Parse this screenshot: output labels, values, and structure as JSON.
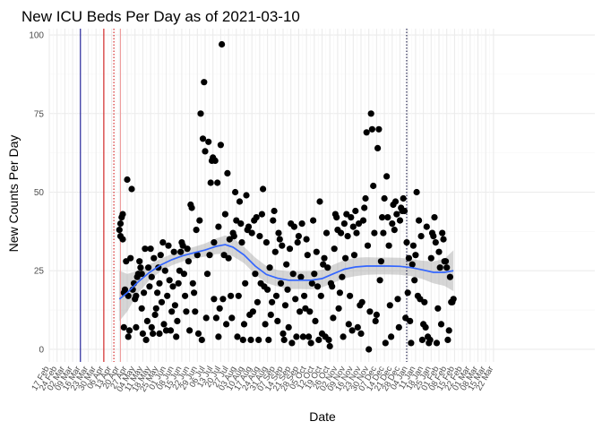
{
  "chart_data": {
    "type": "scatter",
    "title": "New ICU Beds Per Day as of 2021-03-10",
    "xlabel": "Date",
    "ylabel": "New Counts Per Day",
    "x_range": [
      0,
      490
    ],
    "ylim": [
      -4,
      102
    ],
    "y_ticks": [
      0,
      25,
      50,
      75,
      100
    ],
    "x_tick_labels": [
      "17 Feb",
      "24 Feb",
      "02 Mar",
      "09 Mar",
      "16 Mar",
      "23 Mar",
      "30 Mar",
      "06 Apr",
      "13 Apr",
      "20 Apr",
      "27 Apr",
      "04 May",
      "11 May",
      "18 May",
      "25 May",
      "01 Jun",
      "08 Jun",
      "15 Jun",
      "22 Jun",
      "29 Jun",
      "06 Jul",
      "13 Jul",
      "20 Jul",
      "27 Jul",
      "03 Aug",
      "10 Aug",
      "17 Aug",
      "24 Aug",
      "31 Aug",
      "07 Sep",
      "14 Sep",
      "21 Sep",
      "28 Sep",
      "05 Oct",
      "12 Oct",
      "19 Oct",
      "26 Oct",
      "02 Nov",
      "09 Nov",
      "16 Nov",
      "23 Nov",
      "30 Nov",
      "07 Dec",
      "14 Dec",
      "21 Dec",
      "28 Dec",
      "04 Jan",
      "11 Jan",
      "18 Jan",
      "25 Jan",
      "01 Feb",
      "08 Feb",
      "15 Feb",
      "22 Feb",
      "01 Mar",
      "08 Mar",
      "15 Mar",
      "22 Mar"
    ],
    "grid": true,
    "points": [
      [
        63,
        38
      ],
      [
        64,
        40
      ],
      [
        64,
        36
      ],
      [
        65,
        42
      ],
      [
        66,
        43
      ],
      [
        66,
        35
      ],
      [
        67,
        7
      ],
      [
        67,
        18
      ],
      [
        68,
        19
      ],
      [
        69,
        28
      ],
      [
        70,
        54
      ],
      [
        71,
        17
      ],
      [
        71,
        4
      ],
      [
        72,
        6
      ],
      [
        73,
        29
      ],
      [
        74,
        51
      ],
      [
        75,
        19
      ],
      [
        76,
        21
      ],
      [
        77,
        16
      ],
      [
        78,
        17
      ],
      [
        78,
        7
      ],
      [
        79,
        23
      ],
      [
        80,
        24
      ],
      [
        81,
        28
      ],
      [
        82,
        26
      ],
      [
        83,
        24
      ],
      [
        83,
        13
      ],
      [
        84,
        5
      ],
      [
        85,
        18
      ],
      [
        86,
        32
      ],
      [
        87,
        3
      ],
      [
        88,
        9
      ],
      [
        89,
        26
      ],
      [
        90,
        20
      ],
      [
        91,
        32
      ],
      [
        92,
        7
      ],
      [
        92,
        23
      ],
      [
        93,
        5
      ],
      [
        94,
        29
      ],
      [
        95,
        11
      ],
      [
        96,
        13
      ],
      [
        97,
        18
      ],
      [
        98,
        26
      ],
      [
        99,
        21
      ],
      [
        99,
        5
      ],
      [
        100,
        30
      ],
      [
        101,
        15
      ],
      [
        102,
        34
      ],
      [
        103,
        8
      ],
      [
        104,
        25
      ],
      [
        105,
        6
      ],
      [
        106,
        17
      ],
      [
        107,
        33
      ],
      [
        108,
        22
      ],
      [
        109,
        6
      ],
      [
        110,
        12
      ],
      [
        111,
        20
      ],
      [
        112,
        31
      ],
      [
        113,
        14
      ],
      [
        114,
        4
      ],
      [
        115,
        9
      ],
      [
        116,
        21
      ],
      [
        117,
        25
      ],
      [
        118,
        31
      ],
      [
        119,
        34
      ],
      [
        120,
        33
      ],
      [
        121,
        24
      ],
      [
        122,
        17
      ],
      [
        123,
        12
      ],
      [
        124,
        32
      ],
      [
        125,
        28
      ],
      [
        126,
        6
      ],
      [
        127,
        46
      ],
      [
        128,
        45
      ],
      [
        129,
        21
      ],
      [
        130,
        18
      ],
      [
        131,
        12
      ],
      [
        132,
        38
      ],
      [
        133,
        30
      ],
      [
        134,
        5
      ],
      [
        135,
        41
      ],
      [
        136,
        75
      ],
      [
        137,
        3
      ],
      [
        138,
        67
      ],
      [
        139,
        85
      ],
      [
        140,
        63
      ],
      [
        141,
        10
      ],
      [
        142,
        24
      ],
      [
        143,
        66
      ],
      [
        144,
        30
      ],
      [
        145,
        53
      ],
      [
        146,
        60
      ],
      [
        147,
        61
      ],
      [
        148,
        16
      ],
      [
        148,
        34
      ],
      [
        149,
        60
      ],
      [
        150,
        10
      ],
      [
        151,
        53
      ],
      [
        152,
        39
      ],
      [
        152,
        4
      ],
      [
        153,
        13
      ],
      [
        154,
        65
      ],
      [
        155,
        97
      ],
      [
        156,
        16
      ],
      [
        157,
        30
      ],
      [
        158,
        43
      ],
      [
        159,
        8
      ],
      [
        160,
        56
      ],
      [
        161,
        29
      ],
      [
        162,
        35
      ],
      [
        163,
        17
      ],
      [
        164,
        10
      ],
      [
        165,
        37
      ],
      [
        166,
        36
      ],
      [
        167,
        50
      ],
      [
        168,
        41
      ],
      [
        169,
        4
      ],
      [
        170,
        17
      ],
      [
        171,
        47
      ],
      [
        172,
        40
      ],
      [
        173,
        34
      ],
      [
        174,
        3
      ],
      [
        175,
        8
      ],
      [
        176,
        21
      ],
      [
        177,
        49
      ],
      [
        178,
        38
      ],
      [
        179,
        39
      ],
      [
        180,
        11
      ],
      [
        181,
        3
      ],
      [
        182,
        37
      ],
      [
        183,
        12
      ],
      [
        184,
        41
      ],
      [
        185,
        24
      ],
      [
        186,
        42
      ],
      [
        187,
        15
      ],
      [
        188,
        3
      ],
      [
        189,
        36
      ],
      [
        190,
        21
      ],
      [
        191,
        43
      ],
      [
        192,
        51
      ],
      [
        193,
        20
      ],
      [
        194,
        8
      ],
      [
        195,
        34
      ],
      [
        196,
        19
      ],
      [
        197,
        3
      ],
      [
        198,
        26
      ],
      [
        199,
        11
      ],
      [
        200,
        15
      ],
      [
        201,
        41
      ],
      [
        202,
        44
      ],
      [
        203,
        31
      ],
      [
        204,
        17
      ],
      [
        205,
        9
      ],
      [
        206,
        37
      ],
      [
        207,
        35
      ],
      [
        208,
        21
      ],
      [
        209,
        33
      ],
      [
        210,
        5
      ],
      [
        211,
        3
      ],
      [
        212,
        14
      ],
      [
        213,
        27
      ],
      [
        214,
        19
      ],
      [
        215,
        7
      ],
      [
        216,
        32
      ],
      [
        217,
        40
      ],
      [
        218,
        2
      ],
      [
        219,
        24
      ],
      [
        220,
        39
      ],
      [
        221,
        16
      ],
      [
        222,
        4
      ],
      [
        223,
        34
      ],
      [
        224,
        36
      ],
      [
        225,
        12
      ],
      [
        226,
        23
      ],
      [
        227,
        40
      ],
      [
        228,
        4
      ],
      [
        229,
        17
      ],
      [
        230,
        13
      ],
      [
        231,
        35
      ],
      [
        232,
        30
      ],
      [
        233,
        4
      ],
      [
        234,
        12
      ],
      [
        235,
        2
      ],
      [
        236,
        21
      ],
      [
        237,
        41
      ],
      [
        238,
        24
      ],
      [
        239,
        9
      ],
      [
        240,
        31
      ],
      [
        241,
        20
      ],
      [
        242,
        3
      ],
      [
        243,
        47
      ],
      [
        244,
        17
      ],
      [
        245,
        5
      ],
      [
        246,
        27
      ],
      [
        247,
        29
      ],
      [
        248,
        4
      ],
      [
        249,
        37
      ],
      [
        250,
        26
      ],
      [
        251,
        3
      ],
      [
        252,
        1
      ],
      [
        253,
        21
      ],
      [
        254,
        20
      ],
      [
        255,
        10
      ],
      [
        256,
        32
      ],
      [
        257,
        43
      ],
      [
        258,
        42
      ],
      [
        259,
        38
      ],
      [
        260,
        13
      ],
      [
        261,
        18
      ],
      [
        262,
        37
      ],
      [
        263,
        23
      ],
      [
        264,
        4
      ],
      [
        265,
        40
      ],
      [
        266,
        29
      ],
      [
        267,
        43
      ],
      [
        268,
        36
      ],
      [
        269,
        8
      ],
      [
        270,
        17
      ],
      [
        271,
        42
      ],
      [
        272,
        6
      ],
      [
        273,
        39
      ],
      [
        274,
        30
      ],
      [
        275,
        44
      ],
      [
        276,
        37
      ],
      [
        277,
        7
      ],
      [
        278,
        40
      ],
      [
        279,
        14
      ],
      [
        280,
        5
      ],
      [
        281,
        15
      ],
      [
        282,
        41
      ],
      [
        283,
        45
      ],
      [
        284,
        48
      ],
      [
        285,
        69
      ],
      [
        286,
        33
      ],
      [
        287,
        0
      ],
      [
        288,
        12
      ],
      [
        289,
        75
      ],
      [
        290,
        70
      ],
      [
        291,
        52
      ],
      [
        292,
        37
      ],
      [
        293,
        9
      ],
      [
        294,
        11
      ],
      [
        295,
        64
      ],
      [
        296,
        70
      ],
      [
        297,
        22
      ],
      [
        298,
        28
      ],
      [
        299,
        42
      ],
      [
        300,
        37
      ],
      [
        301,
        48
      ],
      [
        302,
        2
      ],
      [
        303,
        55
      ],
      [
        304,
        42
      ],
      [
        305,
        33
      ],
      [
        306,
        14
      ],
      [
        307,
        4
      ],
      [
        308,
        40
      ],
      [
        309,
        46
      ],
      [
        310,
        38
      ],
      [
        311,
        47
      ],
      [
        312,
        43
      ],
      [
        313,
        16
      ],
      [
        314,
        7
      ],
      [
        315,
        41
      ],
      [
        316,
        45
      ],
      [
        317,
        44
      ],
      [
        318,
        48
      ],
      [
        319,
        44
      ],
      [
        320,
        10
      ],
      [
        321,
        34
      ],
      [
        322,
        18
      ],
      [
        323,
        29
      ],
      [
        324,
        9
      ],
      [
        325,
        2
      ],
      [
        326,
        27
      ],
      [
        327,
        33
      ],
      [
        328,
        22
      ],
      [
        329,
        30
      ],
      [
        330,
        50
      ],
      [
        331,
        17
      ],
      [
        332,
        41
      ],
      [
        333,
        16
      ],
      [
        334,
        36
      ],
      [
        335,
        3
      ],
      [
        336,
        8
      ],
      [
        337,
        15
      ],
      [
        338,
        7
      ],
      [
        339,
        39
      ],
      [
        340,
        4
      ],
      [
        341,
        2
      ],
      [
        342,
        3
      ],
      [
        343,
        29
      ],
      [
        344,
        37
      ],
      [
        345,
        36
      ],
      [
        346,
        42
      ],
      [
        347,
        34
      ],
      [
        348,
        2
      ],
      [
        349,
        13
      ],
      [
        350,
        31
      ],
      [
        351,
        26
      ],
      [
        352,
        8
      ],
      [
        353,
        37
      ],
      [
        354,
        35
      ],
      [
        355,
        28
      ],
      [
        356,
        28
      ],
      [
        357,
        26
      ],
      [
        358,
        3
      ],
      [
        359,
        6
      ],
      [
        360,
        23
      ],
      [
        361,
        15
      ],
      [
        362,
        15
      ],
      [
        363,
        16
      ]
    ],
    "smooth_line": [
      [
        63,
        16
      ],
      [
        70,
        18
      ],
      [
        80,
        21.5
      ],
      [
        90,
        24.5
      ],
      [
        100,
        26.8
      ],
      [
        110,
        28.5
      ],
      [
        120,
        29.8
      ],
      [
        130,
        30.7
      ],
      [
        140,
        31.6
      ],
      [
        150,
        32.8
      ],
      [
        158,
        33.3
      ],
      [
        165,
        32.5
      ],
      [
        175,
        30
      ],
      [
        185,
        26.5
      ],
      [
        195,
        23.8
      ],
      [
        205,
        22.6
      ],
      [
        215,
        22
      ],
      [
        225,
        22
      ],
      [
        235,
        22
      ],
      [
        245,
        22.5
      ],
      [
        255,
        24
      ],
      [
        265,
        25.5
      ],
      [
        275,
        26.2
      ],
      [
        285,
        26.5
      ],
      [
        295,
        26.5
      ],
      [
        305,
        26.5
      ],
      [
        315,
        26.4
      ],
      [
        325,
        26
      ],
      [
        335,
        25.3
      ],
      [
        345,
        24.5
      ],
      [
        355,
        24.5
      ],
      [
        363,
        25
      ]
    ],
    "band_upper": [
      [
        63,
        25
      ],
      [
        70,
        24
      ],
      [
        80,
        25
      ],
      [
        90,
        27
      ],
      [
        100,
        28.8
      ],
      [
        110,
        30.3
      ],
      [
        120,
        31.6
      ],
      [
        130,
        32.6
      ],
      [
        140,
        33.7
      ],
      [
        150,
        35.3
      ],
      [
        158,
        36.2
      ],
      [
        165,
        35.4
      ],
      [
        175,
        32.6
      ],
      [
        185,
        29.2
      ],
      [
        195,
        26.5
      ],
      [
        205,
        25.2
      ],
      [
        215,
        24.8
      ],
      [
        225,
        24.8
      ],
      [
        235,
        24.9
      ],
      [
        245,
        25.3
      ],
      [
        255,
        26.9
      ],
      [
        265,
        28.4
      ],
      [
        275,
        29.1
      ],
      [
        285,
        29.3
      ],
      [
        295,
        29.2
      ],
      [
        305,
        29.2
      ],
      [
        315,
        29.1
      ],
      [
        325,
        28.7
      ],
      [
        335,
        28.2
      ],
      [
        345,
        28
      ],
      [
        355,
        28.8
      ],
      [
        363,
        31.5
      ]
    ],
    "band_lower": [
      [
        63,
        9
      ],
      [
        70,
        12
      ],
      [
        80,
        18
      ],
      [
        90,
        22
      ],
      [
        100,
        24.8
      ],
      [
        110,
        26.7
      ],
      [
        120,
        28
      ],
      [
        130,
        28.8
      ],
      [
        140,
        29.5
      ],
      [
        150,
        30.3
      ],
      [
        158,
        30.4
      ],
      [
        165,
        29.6
      ],
      [
        175,
        27.4
      ],
      [
        185,
        23.8
      ],
      [
        195,
        21.1
      ],
      [
        205,
        20
      ],
      [
        215,
        19.2
      ],
      [
        225,
        19.2
      ],
      [
        235,
        19.1
      ],
      [
        245,
        19.7
      ],
      [
        255,
        21.1
      ],
      [
        265,
        22.6
      ],
      [
        275,
        23.3
      ],
      [
        285,
        23.7
      ],
      [
        295,
        23.8
      ],
      [
        305,
        23.8
      ],
      [
        315,
        23.7
      ],
      [
        325,
        23.3
      ],
      [
        335,
        22.4
      ],
      [
        345,
        21
      ],
      [
        355,
        20.2
      ],
      [
        363,
        18.5
      ]
    ],
    "vertical_lines": [
      {
        "x": 28,
        "color": "#00008b",
        "style": "solid"
      },
      {
        "x": 49,
        "color": "#cd0000",
        "style": "solid"
      },
      {
        "x": 58,
        "color": "#cd0000",
        "style": "dotted"
      },
      {
        "x": 64,
        "color": "#ee9999",
        "style": "solid"
      },
      {
        "x": 321,
        "color": "#000033",
        "style": "dotted"
      }
    ],
    "colors": {
      "points": "#000000",
      "smooth": "#3366ff",
      "band": "#999999",
      "grid_major": "#ebebeb",
      "grid_minor": "#f5f5f5",
      "tick_text": "#4d4d4d"
    }
  }
}
